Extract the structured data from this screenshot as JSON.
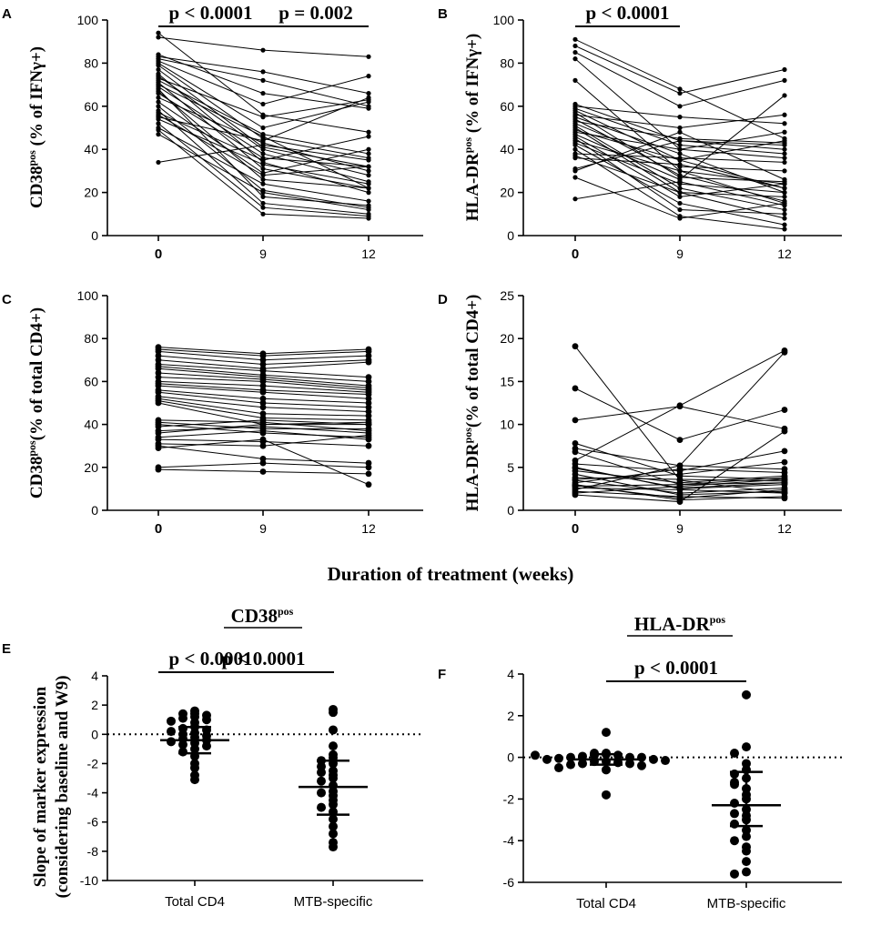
{
  "figure": {
    "shared_xlabel": "Duration of treatment (weeks)",
    "title_e": "CD38",
    "title_e_sup": "pos",
    "title_f": "HLA-DR",
    "title_f_sup": "pos"
  },
  "chart_data": [
    {
      "panel": "A",
      "type": "line",
      "ylabel_main": "CD38",
      "ylabel_sup": "pos",
      "ylabel_rest": " (% of IFNγ+)",
      "x": [
        "0",
        "9",
        "12"
      ],
      "ylim": [
        0,
        100
      ],
      "yticks": [
        0,
        20,
        40,
        60,
        80,
        100
      ],
      "pvalues": [
        {
          "text": "p < 0.0001",
          "from": 0,
          "to": 1
        },
        {
          "text": "p = 0.002",
          "from": 1,
          "to": 2
        }
      ],
      "series": [
        [
          94,
          56,
          48
        ],
        [
          92,
          86,
          83
        ],
        [
          84,
          66,
          59
        ],
        [
          83,
          76,
          66
        ],
        [
          82,
          72,
          60
        ],
        [
          81,
          61,
          74
        ],
        [
          80,
          50,
          62
        ],
        [
          79,
          45,
          36
        ],
        [
          77,
          41,
          32
        ],
        [
          75,
          34,
          20
        ],
        [
          74,
          40,
          28
        ],
        [
          73,
          55,
          63
        ],
        [
          72,
          47,
          38
        ],
        [
          71,
          31,
          22
        ],
        [
          70,
          46,
          22
        ],
        [
          69,
          38,
          25
        ],
        [
          68,
          18,
          14
        ],
        [
          67,
          26,
          22
        ],
        [
          66,
          36,
          32
        ],
        [
          64,
          43,
          30
        ],
        [
          62,
          29,
          40
        ],
        [
          60,
          21,
          13
        ],
        [
          58,
          15,
          10
        ],
        [
          57,
          35,
          46
        ],
        [
          56,
          28,
          32
        ],
        [
          55,
          44,
          64
        ],
        [
          54,
          33,
          24
        ],
        [
          52,
          13,
          9
        ],
        [
          50,
          24,
          16
        ],
        [
          49,
          10,
          8
        ],
        [
          47,
          20,
          12
        ],
        [
          34,
          42,
          35
        ]
      ]
    },
    {
      "panel": "B",
      "type": "line",
      "ylabel_main": "HLA-DR",
      "ylabel_sup": "pos",
      "ylabel_rest": " (% of IFNγ+)",
      "x": [
        "0",
        "9",
        "12"
      ],
      "ylim": [
        0,
        100
      ],
      "yticks": [
        0,
        20,
        40,
        60,
        80,
        100
      ],
      "pvalues": [
        {
          "text": "p < 0.0001",
          "from": 0,
          "to": 1
        }
      ],
      "series": [
        [
          91,
          68,
          45
        ],
        [
          88,
          66,
          77
        ],
        [
          85,
          60,
          72
        ],
        [
          82,
          40,
          36
        ],
        [
          72,
          30,
          24
        ],
        [
          61,
          44,
          40
        ],
        [
          60,
          55,
          52
        ],
        [
          59,
          42,
          38
        ],
        [
          58,
          35,
          44
        ],
        [
          57,
          27,
          25
        ],
        [
          56,
          50,
          56
        ],
        [
          55,
          38,
          20
        ],
        [
          54,
          28,
          16
        ],
        [
          53,
          45,
          43
        ],
        [
          52,
          32,
          30
        ],
        [
          51,
          22,
          12
        ],
        [
          50,
          20,
          8
        ],
        [
          49,
          35,
          22
        ],
        [
          48,
          40,
          48
        ],
        [
          47,
          26,
          65
        ],
        [
          46,
          18,
          24
        ],
        [
          45,
          12,
          10
        ],
        [
          44,
          30,
          15
        ],
        [
          43,
          24,
          20
        ],
        [
          42,
          15,
          5
        ],
        [
          40,
          9,
          3
        ],
        [
          38,
          36,
          34
        ],
        [
          37,
          20,
          18
        ],
        [
          36,
          33,
          22
        ],
        [
          31,
          44,
          42
        ],
        [
          30,
          48,
          26
        ],
        [
          27,
          8,
          15
        ],
        [
          17,
          25,
          14
        ]
      ]
    },
    {
      "panel": "C",
      "type": "line",
      "ylabel_main": "CD38",
      "ylabel_sup": "pos",
      "ylabel_rest": "(% of total CD4+)",
      "x": [
        "0",
        "9",
        "12"
      ],
      "ylim": [
        0,
        100
      ],
      "yticks": [
        0,
        20,
        40,
        60,
        80,
        100
      ],
      "series": [
        [
          76,
          73,
          75
        ],
        [
          75,
          72,
          74
        ],
        [
          74,
          70,
          72
        ],
        [
          72,
          68,
          70
        ],
        [
          70,
          66,
          69
        ],
        [
          68,
          65,
          62
        ],
        [
          67,
          63,
          60
        ],
        [
          66,
          62,
          58
        ],
        [
          64,
          61,
          57
        ],
        [
          62,
          60,
          56
        ],
        [
          60,
          58,
          55
        ],
        [
          59,
          56,
          54
        ],
        [
          58,
          55,
          52
        ],
        [
          56,
          52,
          50
        ],
        [
          55,
          50,
          48
        ],
        [
          53,
          48,
          46
        ],
        [
          52,
          45,
          44
        ],
        [
          51,
          43,
          42
        ],
        [
          50,
          40,
          40
        ],
        [
          42,
          41,
          37
        ],
        [
          41,
          38,
          38
        ],
        [
          40,
          36,
          34
        ],
        [
          39,
          42,
          40
        ],
        [
          37,
          39,
          36
        ],
        [
          36,
          40,
          41
        ],
        [
          34,
          37,
          33
        ],
        [
          33,
          32,
          30
        ],
        [
          31,
          30,
          35
        ],
        [
          30,
          24,
          22
        ],
        [
          29,
          33,
          12
        ],
        [
          20,
          22,
          20
        ],
        [
          19,
          18,
          17
        ]
      ]
    },
    {
      "panel": "D",
      "type": "line",
      "ylabel_main": "HLA-DR",
      "ylabel_sup": "pos",
      "ylabel_rest": "(% of total CD4+)",
      "x": [
        "0",
        "9",
        "12"
      ],
      "ylim": [
        0,
        25
      ],
      "yticks": [
        0,
        5,
        10,
        15,
        20,
        25
      ],
      "series": [
        [
          19.1,
          3.5,
          2.0
        ],
        [
          14.2,
          8.2,
          11.7
        ],
        [
          10.5,
          12.1,
          9.5
        ],
        [
          7.8,
          4.0,
          3.6
        ],
        [
          7.2,
          5.2,
          4.8
        ],
        [
          6.8,
          3.0,
          3.2
        ],
        [
          5.8,
          12.2,
          18.6
        ],
        [
          5.4,
          4.6,
          6.9
        ],
        [
          5.0,
          2.5,
          3.0
        ],
        [
          4.6,
          3.2,
          4.0
        ],
        [
          4.2,
          1.8,
          2.2
        ],
        [
          3.8,
          3.6,
          3.4
        ],
        [
          3.5,
          2.0,
          2.6
        ],
        [
          3.2,
          4.8,
          4.4
        ],
        [
          3.0,
          1.2,
          1.6
        ],
        [
          2.8,
          3.0,
          3.8
        ],
        [
          2.6,
          2.4,
          2.0
        ],
        [
          2.4,
          5.2,
          18.4
        ],
        [
          2.2,
          1.6,
          1.4
        ],
        [
          2.0,
          2.8,
          3.6
        ],
        [
          1.8,
          1.0,
          9.2
        ],
        [
          3.6,
          4.2,
          5.6
        ],
        [
          2.9,
          1.4,
          2.4
        ],
        [
          4.9,
          2.6,
          3.2
        ]
      ]
    },
    {
      "panel": "E",
      "type": "scatter",
      "ylabel": "Slope of marker expression",
      "ylabel2": "(considering baseline and W9)",
      "categories": [
        "Total CD4",
        "MTB-specific"
      ],
      "ylim": [
        -10,
        4
      ],
      "yticks": [
        -10,
        -8,
        -6,
        -4,
        -2,
        0,
        2,
        4
      ],
      "pvalue": "p < 0.0001",
      "groups": [
        {
          "points": [
            1.6,
            1.4,
            1.4,
            1.3,
            1.2,
            1.1,
            1.0,
            0.9,
            0.8,
            0.5,
            0.4,
            0.3,
            0.2,
            0.1,
            0.0,
            -0.1,
            -0.2,
            -0.3,
            -0.4,
            -0.5,
            -0.6,
            -0.7,
            -0.8,
            -1.0,
            -1.2,
            -1.5,
            -2.0,
            -2.3,
            -2.8,
            -3.1
          ],
          "mean": -0.4,
          "sd_low": -1.3,
          "sd_high": 0.5
        },
        {
          "points": [
            1.7,
            1.5,
            0.3,
            -0.8,
            -1.4,
            -1.6,
            -1.8,
            -2.0,
            -2.2,
            -2.5,
            -2.8,
            -3.0,
            -3.2,
            -3.5,
            -3.9,
            -4.2,
            -4.5,
            -4.8,
            -5.0,
            -5.3,
            -5.8,
            -6.3,
            -6.8,
            -7.4,
            -7.7,
            -4.0,
            -2.6
          ],
          "mean": -3.6,
          "sd_low": -5.5,
          "sd_high": -1.8
        }
      ]
    },
    {
      "panel": "F",
      "type": "scatter",
      "categories": [
        "Total CD4",
        "MTB-specific"
      ],
      "ylim": [
        -6,
        4
      ],
      "yticks": [
        -6,
        -4,
        -2,
        0,
        2,
        4
      ],
      "pvalue": "p < 0.0001",
      "groups": [
        {
          "points": [
            1.2,
            0.2,
            0.15,
            0.1,
            0.1,
            0.05,
            0.0,
            0.0,
            0.0,
            -0.05,
            -0.1,
            -0.1,
            -0.15,
            -0.2,
            -0.2,
            -0.25,
            -0.3,
            -0.3,
            -0.35,
            -0.4,
            -0.5,
            -0.6,
            0.2,
            0.1,
            -1.8
          ],
          "mean": -0.1,
          "sd_low": -0.35,
          "sd_high": 0.15
        },
        {
          "points": [
            3.0,
            0.5,
            0.2,
            -0.3,
            -0.6,
            -0.8,
            -1.0,
            -1.2,
            -1.5,
            -1.8,
            -2.0,
            -2.2,
            -2.5,
            -2.8,
            -3.0,
            -3.2,
            -3.5,
            -3.8,
            -4.0,
            -4.3,
            -4.5,
            -5.0,
            -5.5,
            -5.6,
            -2.7,
            -1.3
          ],
          "mean": -2.3,
          "sd_low": -3.3,
          "sd_high": -0.7
        }
      ]
    }
  ]
}
